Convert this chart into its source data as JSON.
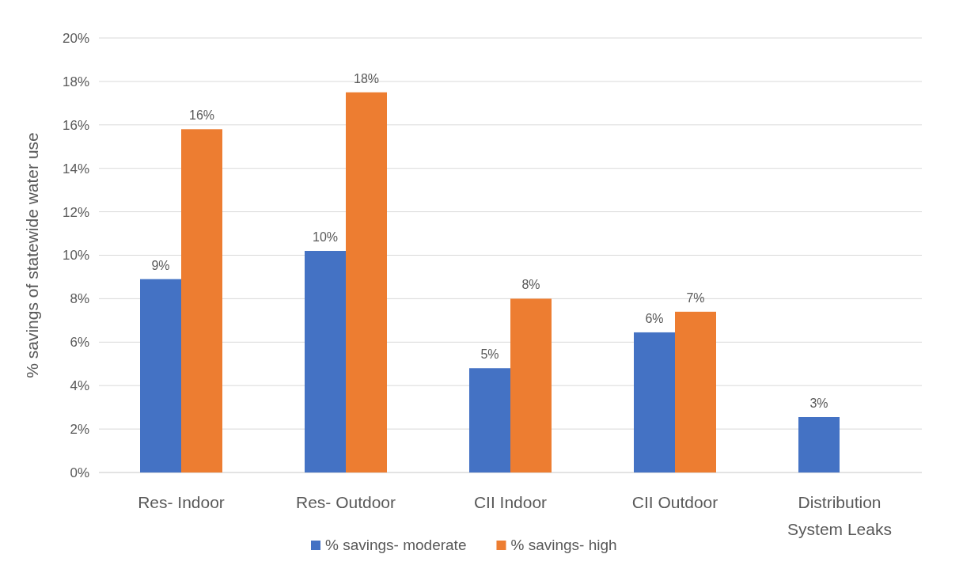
{
  "chart_data": {
    "type": "bar",
    "ylabel": "% savings of statewide water use",
    "categories": [
      "Res- Indoor",
      "Res- Outdoor",
      "CII Indoor",
      "CII Outdoor",
      "Distribution System Leaks"
    ],
    "series": [
      {
        "name": "% savings- moderate",
        "color": "#4472c4",
        "values": [
          8.9,
          10.2,
          4.8,
          6.45,
          2.55
        ],
        "value_labels": [
          "9%",
          "10%",
          "5%",
          "6%",
          "3%"
        ]
      },
      {
        "name": "% savings- high",
        "color": "#ed7d31",
        "values": [
          15.8,
          17.5,
          8.0,
          7.4,
          null
        ],
        "value_labels": [
          "16%",
          "18%",
          "8%",
          "7%",
          null
        ]
      }
    ],
    "ylim": [
      0,
      20
    ],
    "yticks": [
      {
        "value": 0,
        "label": "0%"
      },
      {
        "value": 2,
        "label": "2%"
      },
      {
        "value": 4,
        "label": "4%"
      },
      {
        "value": 6,
        "label": "6%"
      },
      {
        "value": 8,
        "label": "8%"
      },
      {
        "value": 10,
        "label": "10%"
      },
      {
        "value": 12,
        "label": "12%"
      },
      {
        "value": 14,
        "label": "14%"
      },
      {
        "value": 16,
        "label": "16%"
      },
      {
        "value": 18,
        "label": "18%"
      },
      {
        "value": 20,
        "label": "20%"
      }
    ],
    "grid": "y",
    "legend": "bottom"
  }
}
